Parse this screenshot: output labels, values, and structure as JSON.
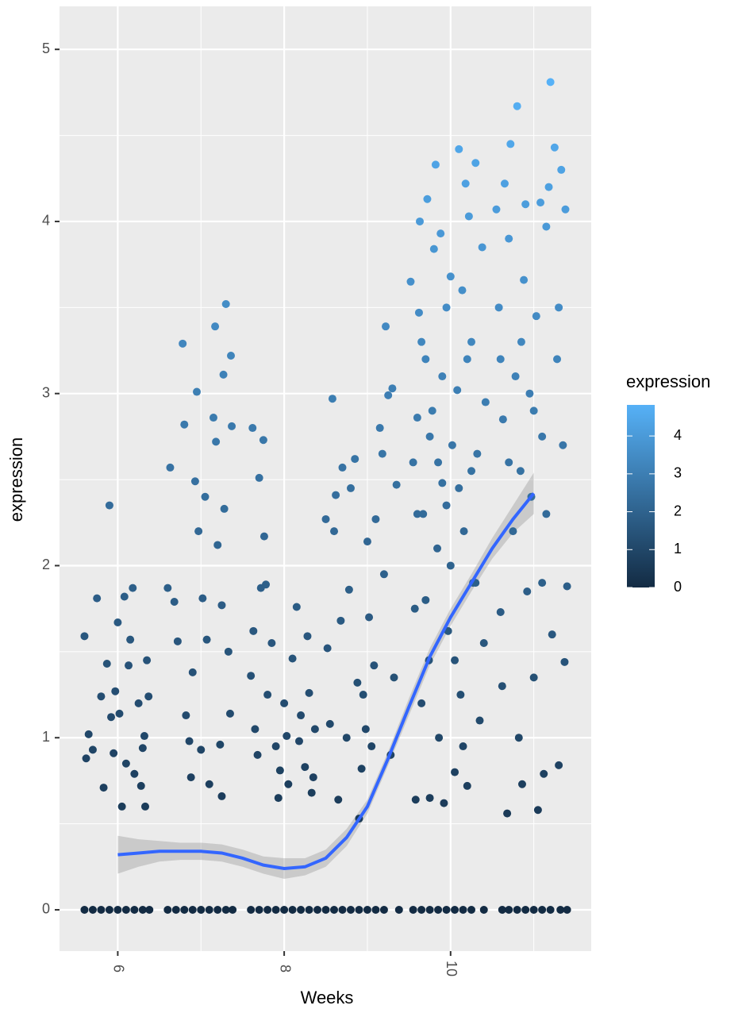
{
  "chart_data": {
    "type": "scatter",
    "x_label": "Weeks",
    "y_label": "expression",
    "xlim": [
      5.3,
      11.69
    ],
    "ylim": [
      -0.24,
      5.25
    ],
    "xticks": [
      6,
      8,
      10
    ],
    "yticks": [
      0,
      1,
      2,
      3,
      4,
      5
    ],
    "x_minor_ticks": [
      7,
      9,
      11
    ],
    "y_minor_ticks": [
      0.5,
      1.5,
      2.5,
      3.5,
      4.5
    ],
    "grid": true,
    "x": [
      5.6,
      5.62,
      5.65,
      5.7,
      5.75,
      5.8,
      5.83,
      5.87,
      5.9,
      5.92,
      5.95,
      5.97,
      6.0,
      6.02,
      6.05,
      6.08,
      6.1,
      6.13,
      6.15,
      6.18,
      6.2,
      6.25,
      6.28,
      6.3,
      6.32,
      6.33,
      6.35,
      6.37,
      6.6,
      6.63,
      6.68,
      6.72,
      6.78,
      6.8,
      6.82,
      6.86,
      6.88,
      6.9,
      6.93,
      6.95,
      6.97,
      7.0,
      7.02,
      7.05,
      7.07,
      7.1,
      7.15,
      7.17,
      7.2,
      7.23,
      7.25,
      7.27,
      7.28,
      7.3,
      7.33,
      7.36,
      7.37,
      7.35,
      7.18,
      7.25,
      7.6,
      7.62,
      7.65,
      7.68,
      7.7,
      7.75,
      7.78,
      7.76,
      7.8,
      7.85,
      7.9,
      7.93,
      7.95,
      8.0,
      8.03,
      8.05,
      8.1,
      8.15,
      8.2,
      8.25,
      8.28,
      8.3,
      8.33,
      8.35,
      8.37,
      7.63,
      7.72,
      8.18,
      8.5,
      8.52,
      8.55,
      8.58,
      8.6,
      8.62,
      8.65,
      8.68,
      8.7,
      8.75,
      8.78,
      8.8,
      8.85,
      8.88,
      8.9,
      8.93,
      8.95,
      9.0,
      9.02,
      9.05,
      9.1,
      9.15,
      9.2,
      9.22,
      9.25,
      9.28,
      9.3,
      9.32,
      9.35,
      9.18,
      9.08,
      8.98,
      9.52,
      9.55,
      9.57,
      9.58,
      9.6,
      9.62,
      9.63,
      9.65,
      9.67,
      9.7,
      9.72,
      9.74,
      9.75,
      9.78,
      9.8,
      9.82,
      9.84,
      9.86,
      9.88,
      9.9,
      9.92,
      9.95,
      9.97,
      10.0,
      10.02,
      10.05,
      10.08,
      10.1,
      10.12,
      10.14,
      10.16,
      10.18,
      10.2,
      10.22,
      10.25,
      10.27,
      10.3,
      10.32,
      10.35,
      10.38,
      10.4,
      10.42,
      9.6,
      9.7,
      9.85,
      10.0,
      10.1,
      10.2,
      10.3,
      9.9,
      10.05,
      9.75,
      9.95,
      10.15,
      9.65,
      10.25,
      10.55,
      10.58,
      10.6,
      10.62,
      10.63,
      10.65,
      10.68,
      10.7,
      10.72,
      10.75,
      10.78,
      10.8,
      10.82,
      10.84,
      10.86,
      10.88,
      10.9,
      10.92,
      10.95,
      10.97,
      11.0,
      11.03,
      11.05,
      11.08,
      11.1,
      11.12,
      11.15,
      11.18,
      11.2,
      11.22,
      11.25,
      11.28,
      11.3,
      11.33,
      11.35,
      11.37,
      11.38,
      11.4,
      10.7,
      10.85,
      11.0,
      11.15,
      11.3,
      10.6,
      11.1,
      5.6,
      5.7,
      5.8,
      5.9,
      6.0,
      6.1,
      6.2,
      6.3,
      6.38,
      6.6,
      6.7,
      6.8,
      6.9,
      7.0,
      7.1,
      7.2,
      7.3,
      7.38,
      7.6,
      7.7,
      7.8,
      7.9,
      8.0,
      8.1,
      8.2,
      8.3,
      8.4,
      8.5,
      8.6,
      8.7,
      8.8,
      8.9,
      9.0,
      9.1,
      9.2,
      9.38,
      9.55,
      9.65,
      9.75,
      9.85,
      9.95,
      10.05,
      10.15,
      10.25,
      10.4,
      10.62,
      10.7,
      10.8,
      10.9,
      11.0,
      11.1,
      11.2,
      11.32,
      11.4
    ],
    "values": [
      1.59,
      0.88,
      1.02,
      0.93,
      1.81,
      1.24,
      0.71,
      1.43,
      2.35,
      1.12,
      0.91,
      1.27,
      1.67,
      1.14,
      0.6,
      1.82,
      0.85,
      1.42,
      1.57,
      1.87,
      0.79,
      1.2,
      0.72,
      0.94,
      1.01,
      0.6,
      1.45,
      1.24,
      1.87,
      2.57,
      1.79,
      1.56,
      3.29,
      2.82,
      1.13,
      0.98,
      0.77,
      1.38,
      2.49,
      3.01,
      2.2,
      0.93,
      1.81,
      2.4,
      1.57,
      0.73,
      2.86,
      3.39,
      2.12,
      0.96,
      1.77,
      3.11,
      2.33,
      3.52,
      1.5,
      3.22,
      2.81,
      1.14,
      2.72,
      0.66,
      1.36,
      2.8,
      1.05,
      0.9,
      2.51,
      2.73,
      1.89,
      2.17,
      1.25,
      1.55,
      0.95,
      0.65,
      0.81,
      1.2,
      1.01,
      0.73,
      1.46,
      1.76,
      1.13,
      0.83,
      1.59,
      1.26,
      0.68,
      0.77,
      1.05,
      1.62,
      1.87,
      0.98,
      2.27,
      1.52,
      1.08,
      2.97,
      2.2,
      2.41,
      0.64,
      1.68,
      2.57,
      1.0,
      1.86,
      2.45,
      2.62,
      1.32,
      0.53,
      0.82,
      1.25,
      2.14,
      1.7,
      0.95,
      2.27,
      2.8,
      1.95,
      3.39,
      2.99,
      0.9,
      3.03,
      1.35,
      2.47,
      2.65,
      1.42,
      1.05,
      3.65,
      2.6,
      1.75,
      0.64,
      2.86,
      3.47,
      4.0,
      1.2,
      2.3,
      3.2,
      4.13,
      1.45,
      0.65,
      2.9,
      3.84,
      4.33,
      2.1,
      1.0,
      3.93,
      2.48,
      0.62,
      3.5,
      1.62,
      3.68,
      2.7,
      0.8,
      3.02,
      4.42,
      1.25,
      3.6,
      2.2,
      4.22,
      0.72,
      4.03,
      3.3,
      1.9,
      4.34,
      2.65,
      1.1,
      3.85,
      1.55,
      2.95,
      2.3,
      1.8,
      2.6,
      2.0,
      2.45,
      3.2,
      1.9,
      3.1,
      1.45,
      2.75,
      2.35,
      0.95,
      3.3,
      2.55,
      4.07,
      3.5,
      1.73,
      1.3,
      2.85,
      4.22,
      0.56,
      3.9,
      4.45,
      2.2,
      3.1,
      4.67,
      1.0,
      2.55,
      0.73,
      3.66,
      4.1,
      1.85,
      3.0,
      2.4,
      1.35,
      3.45,
      0.58,
      4.11,
      2.75,
      0.79,
      3.97,
      4.2,
      4.81,
      1.6,
      4.43,
      3.2,
      0.84,
      4.3,
      2.7,
      1.44,
      4.07,
      1.88,
      2.6,
      3.3,
      2.9,
      2.3,
      3.5,
      3.2,
      1.9,
      0,
      0,
      0,
      0,
      0,
      0,
      0,
      0,
      0,
      0,
      0,
      0,
      0,
      0,
      0,
      0,
      0,
      0,
      0,
      0,
      0,
      0,
      0,
      0,
      0,
      0,
      0,
      0,
      0,
      0,
      0,
      0,
      0,
      0,
      0,
      0,
      0,
      0,
      0,
      0,
      0,
      0,
      0,
      0,
      0,
      0,
      0,
      0,
      0,
      0,
      0,
      0,
      0,
      0
    ],
    "smooth": {
      "color": "#3366FF",
      "ribbon_color": "#999999",
      "x": [
        6,
        6.25,
        6.5,
        6.75,
        7,
        7.25,
        7.5,
        7.75,
        8,
        8.25,
        8.5,
        8.75,
        9,
        9.25,
        9.5,
        9.75,
        10,
        10.25,
        10.5,
        10.75,
        11
      ],
      "values": [
        0.32,
        0.33,
        0.34,
        0.34,
        0.34,
        0.33,
        0.3,
        0.26,
        0.24,
        0.25,
        0.3,
        0.42,
        0.6,
        0.88,
        1.18,
        1.47,
        1.7,
        1.9,
        2.1,
        2.27,
        2.42
      ],
      "lower": [
        0.21,
        0.25,
        0.28,
        0.29,
        0.29,
        0.28,
        0.25,
        0.21,
        0.18,
        0.2,
        0.25,
        0.37,
        0.56,
        0.84,
        1.13,
        1.42,
        1.65,
        1.85,
        2.04,
        2.19,
        2.3
      ],
      "upper": [
        0.43,
        0.41,
        0.4,
        0.39,
        0.39,
        0.38,
        0.35,
        0.31,
        0.3,
        0.3,
        0.35,
        0.47,
        0.64,
        0.92,
        1.23,
        1.52,
        1.75,
        1.95,
        2.16,
        2.35,
        2.54
      ]
    },
    "color_label": "expression",
    "color_low": "#132B43",
    "color_high": "#56B1F7",
    "color_lim": [
      0,
      4.82
    ],
    "color_ticks": [
      0,
      1,
      2,
      3,
      4
    ]
  }
}
